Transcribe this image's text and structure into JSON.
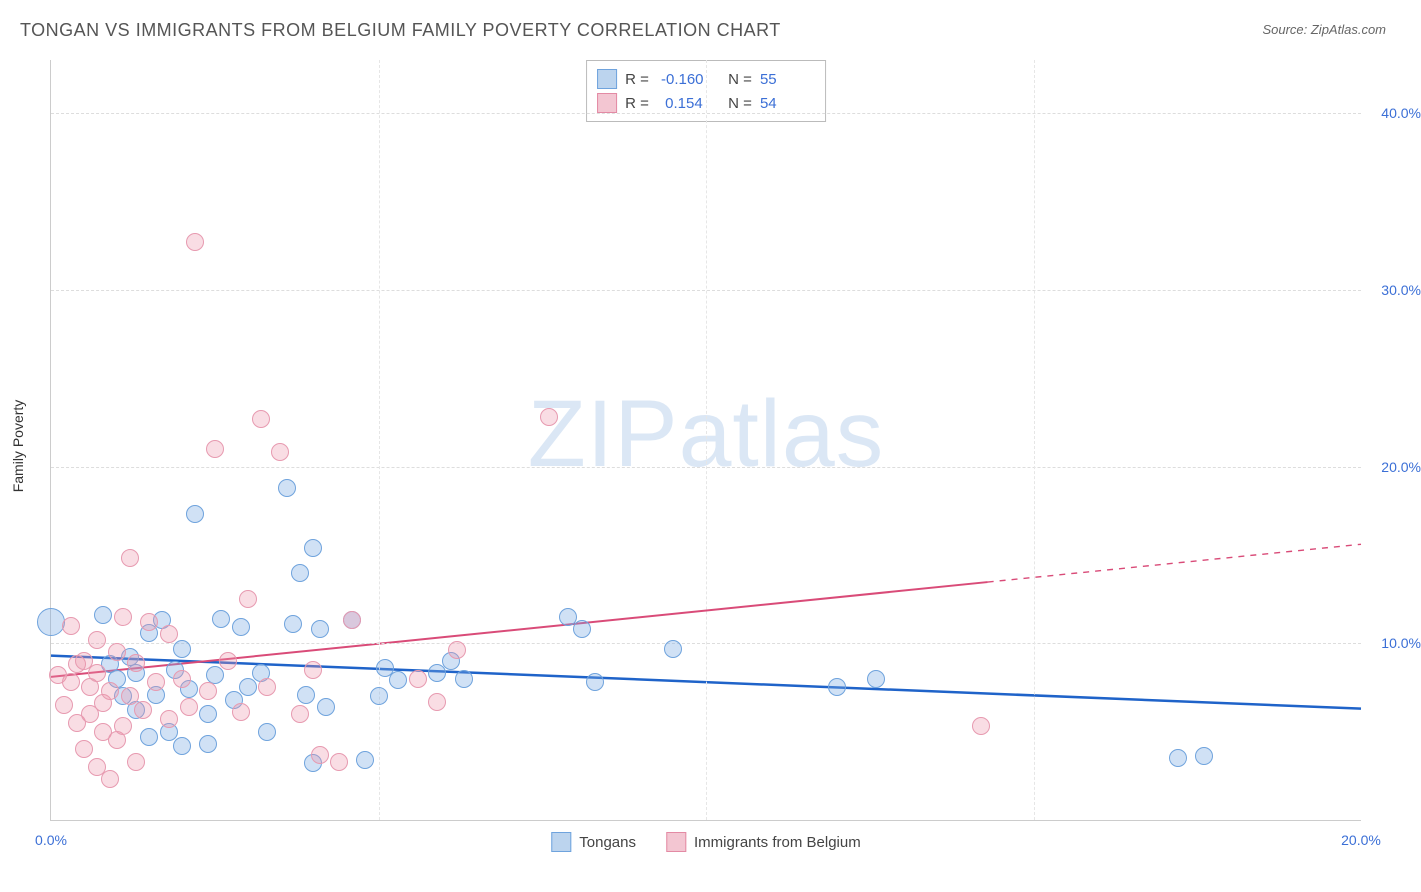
{
  "title": "TONGAN VS IMMIGRANTS FROM BELGIUM FAMILY POVERTY CORRELATION CHART",
  "source": "Source: ZipAtlas.com",
  "watermark": {
    "bold": "ZIP",
    "light": "atlas"
  },
  "ylabel": "Family Poverty",
  "chart": {
    "type": "scatter",
    "background_color": "#ffffff",
    "grid_color": "#dddddd",
    "xlim": [
      0,
      20
    ],
    "ylim": [
      0,
      43
    ],
    "xticks": [
      {
        "v": 0,
        "label": "0.0%"
      },
      {
        "v": 20,
        "label": "20.0%"
      }
    ],
    "xticks_minor": [
      5,
      10,
      15
    ],
    "yticks": [
      {
        "v": 10,
        "label": "10.0%"
      },
      {
        "v": 20,
        "label": "20.0%"
      },
      {
        "v": 30,
        "label": "30.0%"
      },
      {
        "v": 40,
        "label": "40.0%"
      }
    ],
    "marker_radius": 9,
    "marker_radius_large": 14,
    "series": [
      {
        "name": "Tongans",
        "fill": "rgba(120,170,225,0.35)",
        "stroke": "#6fa3dd",
        "swatch_fill": "#bcd4ee",
        "swatch_stroke": "#6fa3dd",
        "trend": {
          "y_at_x0": 9.3,
          "y_at_xmax": 6.3,
          "color": "#1f63c9",
          "width": 2.5,
          "dashed_from_x": null
        },
        "points": [
          {
            "x": 0.0,
            "y": 11.2,
            "large": true
          },
          {
            "x": 0.8,
            "y": 11.6
          },
          {
            "x": 0.9,
            "y": 8.8
          },
          {
            "x": 1.0,
            "y": 8.0
          },
          {
            "x": 1.1,
            "y": 7.0
          },
          {
            "x": 1.2,
            "y": 9.2
          },
          {
            "x": 1.3,
            "y": 6.2
          },
          {
            "x": 1.3,
            "y": 8.3
          },
          {
            "x": 1.5,
            "y": 4.7
          },
          {
            "x": 1.5,
            "y": 10.6
          },
          {
            "x": 1.6,
            "y": 7.1
          },
          {
            "x": 1.7,
            "y": 11.3
          },
          {
            "x": 1.8,
            "y": 5.0
          },
          {
            "x": 1.9,
            "y": 8.5
          },
          {
            "x": 2.0,
            "y": 4.2
          },
          {
            "x": 2.0,
            "y": 9.7
          },
          {
            "x": 2.1,
            "y": 7.4
          },
          {
            "x": 2.2,
            "y": 17.3
          },
          {
            "x": 2.4,
            "y": 6.0
          },
          {
            "x": 2.4,
            "y": 4.3
          },
          {
            "x": 2.5,
            "y": 8.2
          },
          {
            "x": 2.6,
            "y": 11.4
          },
          {
            "x": 2.8,
            "y": 6.8
          },
          {
            "x": 2.9,
            "y": 10.9
          },
          {
            "x": 3.0,
            "y": 7.5
          },
          {
            "x": 3.2,
            "y": 8.3
          },
          {
            "x": 3.3,
            "y": 5.0
          },
          {
            "x": 3.6,
            "y": 18.8
          },
          {
            "x": 3.7,
            "y": 11.1
          },
          {
            "x": 3.8,
            "y": 14.0
          },
          {
            "x": 3.9,
            "y": 7.1
          },
          {
            "x": 4.0,
            "y": 15.4
          },
          {
            "x": 4.0,
            "y": 3.2
          },
          {
            "x": 4.1,
            "y": 10.8
          },
          {
            "x": 4.2,
            "y": 6.4
          },
          {
            "x": 4.6,
            "y": 11.3
          },
          {
            "x": 4.8,
            "y": 3.4
          },
          {
            "x": 5.0,
            "y": 7.0
          },
          {
            "x": 5.1,
            "y": 8.6
          },
          {
            "x": 5.3,
            "y": 7.9
          },
          {
            "x": 5.9,
            "y": 8.3
          },
          {
            "x": 6.1,
            "y": 9.0
          },
          {
            "x": 6.3,
            "y": 8.0
          },
          {
            "x": 7.9,
            "y": 11.5
          },
          {
            "x": 8.1,
            "y": 10.8
          },
          {
            "x": 8.3,
            "y": 7.8
          },
          {
            "x": 9.5,
            "y": 9.7
          },
          {
            "x": 12.0,
            "y": 7.5
          },
          {
            "x": 12.6,
            "y": 8.0
          },
          {
            "x": 17.2,
            "y": 3.5
          },
          {
            "x": 17.6,
            "y": 3.6
          }
        ]
      },
      {
        "name": "Immigrants from Belgium",
        "fill": "rgba(235,150,170,0.32)",
        "stroke": "#e79ab0",
        "swatch_fill": "#f3c6d2",
        "swatch_stroke": "#e38aa4",
        "trend": {
          "y_at_x0": 8.1,
          "y_at_xmax": 15.6,
          "color": "#d94b78",
          "width": 2,
          "dashed_from_x": 14.3
        },
        "points": [
          {
            "x": 0.1,
            "y": 8.2
          },
          {
            "x": 0.2,
            "y": 6.5
          },
          {
            "x": 0.3,
            "y": 7.8
          },
          {
            "x": 0.3,
            "y": 11.0
          },
          {
            "x": 0.4,
            "y": 5.5
          },
          {
            "x": 0.4,
            "y": 8.8
          },
          {
            "x": 0.5,
            "y": 4.0
          },
          {
            "x": 0.5,
            "y": 9.0
          },
          {
            "x": 0.6,
            "y": 6.0
          },
          {
            "x": 0.6,
            "y": 7.5
          },
          {
            "x": 0.7,
            "y": 3.0
          },
          {
            "x": 0.7,
            "y": 8.3
          },
          {
            "x": 0.7,
            "y": 10.2
          },
          {
            "x": 0.8,
            "y": 5.0
          },
          {
            "x": 0.8,
            "y": 6.6
          },
          {
            "x": 0.9,
            "y": 2.3
          },
          {
            "x": 0.9,
            "y": 7.3
          },
          {
            "x": 1.0,
            "y": 4.5
          },
          {
            "x": 1.0,
            "y": 9.5
          },
          {
            "x": 1.1,
            "y": 11.5
          },
          {
            "x": 1.1,
            "y": 5.3
          },
          {
            "x": 1.2,
            "y": 14.8
          },
          {
            "x": 1.2,
            "y": 7.0
          },
          {
            "x": 1.3,
            "y": 3.3
          },
          {
            "x": 1.3,
            "y": 8.9
          },
          {
            "x": 1.4,
            "y": 6.2
          },
          {
            "x": 1.5,
            "y": 11.2
          },
          {
            "x": 1.6,
            "y": 7.8
          },
          {
            "x": 1.8,
            "y": 5.7
          },
          {
            "x": 1.8,
            "y": 10.5
          },
          {
            "x": 2.0,
            "y": 8.0
          },
          {
            "x": 2.1,
            "y": 6.4
          },
          {
            "x": 2.2,
            "y": 32.7
          },
          {
            "x": 2.4,
            "y": 7.3
          },
          {
            "x": 2.5,
            "y": 21.0
          },
          {
            "x": 2.7,
            "y": 9.0
          },
          {
            "x": 2.9,
            "y": 6.1
          },
          {
            "x": 3.0,
            "y": 12.5
          },
          {
            "x": 3.2,
            "y": 22.7
          },
          {
            "x": 3.3,
            "y": 7.5
          },
          {
            "x": 3.5,
            "y": 20.8
          },
          {
            "x": 3.8,
            "y": 6.0
          },
          {
            "x": 4.0,
            "y": 8.5
          },
          {
            "x": 4.1,
            "y": 3.7
          },
          {
            "x": 4.4,
            "y": 3.3
          },
          {
            "x": 4.6,
            "y": 11.3
          },
          {
            "x": 5.6,
            "y": 8.0
          },
          {
            "x": 5.9,
            "y": 6.7
          },
          {
            "x": 6.2,
            "y": 9.6
          },
          {
            "x": 7.6,
            "y": 22.8
          },
          {
            "x": 14.2,
            "y": 5.3
          }
        ]
      }
    ]
  },
  "stats_legend": [
    {
      "series_index": 0,
      "r_label": "R =",
      "r_value": " -0.160",
      "n_label": "N =",
      "n_value": "55"
    },
    {
      "series_index": 1,
      "r_label": "R =",
      "r_value": "  0.154",
      "n_label": "N =",
      "n_value": "54"
    }
  ],
  "bottom_legend": [
    {
      "series_index": 0
    },
    {
      "series_index": 1
    }
  ]
}
